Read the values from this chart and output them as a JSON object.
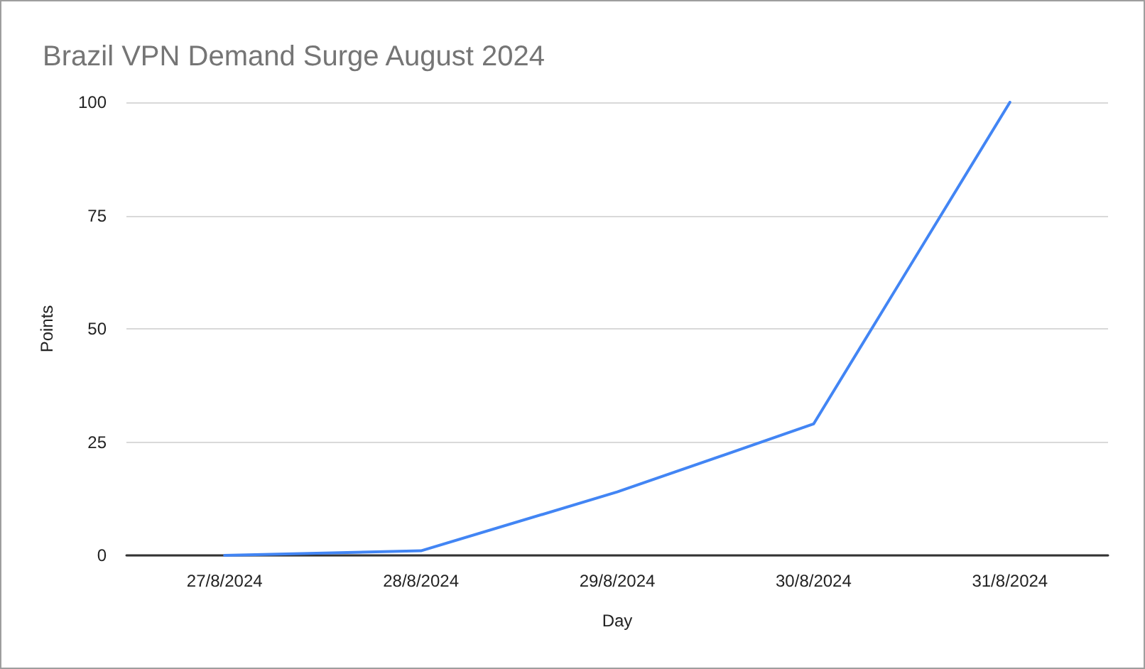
{
  "chart_data": {
    "type": "line",
    "title": "Brazil VPN Demand Surge August 2024",
    "xlabel": "Day",
    "ylabel": "Points",
    "categories": [
      "27/8/2024",
      "28/8/2024",
      "29/8/2024",
      "30/8/2024",
      "31/8/2024"
    ],
    "series": [
      {
        "color": "#4285f4",
        "values": [
          0,
          1,
          14,
          29,
          100
        ]
      }
    ],
    "ylim": [
      0,
      100
    ],
    "yticks": [
      0,
      25,
      50,
      75,
      100
    ],
    "grid": "y",
    "marker": "none",
    "line_style": "solid"
  }
}
